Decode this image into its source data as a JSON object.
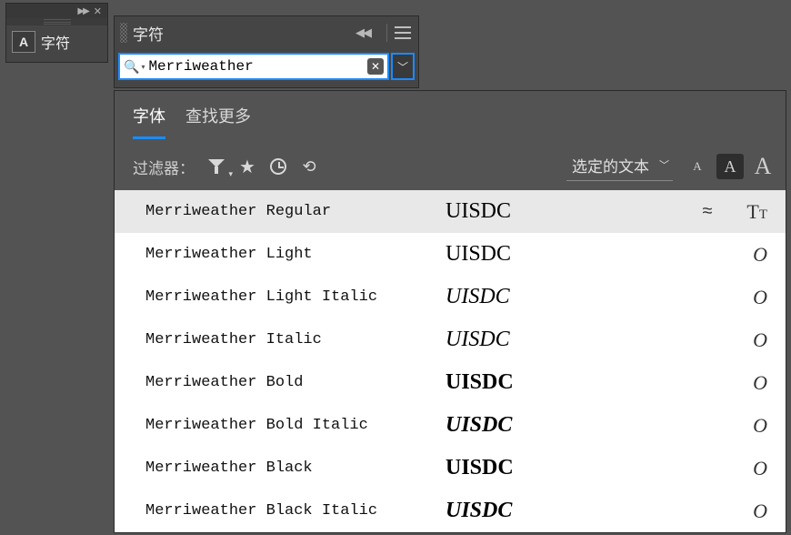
{
  "left_panel": {
    "label": "字符"
  },
  "char_panel": {
    "title": "字符",
    "search_value": "Merriweather"
  },
  "dropdown": {
    "tabs": [
      {
        "label": "字体",
        "active": true
      },
      {
        "label": "查找更多",
        "active": false
      }
    ],
    "filter_label": "过滤器：",
    "selected_text_label": "选定的文本",
    "preview_text": "UISDC",
    "fonts": [
      {
        "name": "Merriweather Regular",
        "weight": "fw400",
        "italic": false,
        "selected": true,
        "similar": "≈",
        "type": "TT"
      },
      {
        "name": "Merriweather Light",
        "weight": "fw300",
        "italic": false,
        "selected": false,
        "similar": "",
        "type": "O"
      },
      {
        "name": "Merriweather Light Italic",
        "weight": "fw300",
        "italic": true,
        "selected": false,
        "similar": "",
        "type": "O"
      },
      {
        "name": "Merriweather Italic",
        "weight": "fw400",
        "italic": true,
        "selected": false,
        "similar": "",
        "type": "O"
      },
      {
        "name": "Merriweather Bold",
        "weight": "fw700",
        "italic": false,
        "selected": false,
        "similar": "",
        "type": "O"
      },
      {
        "name": "Merriweather Bold Italic",
        "weight": "fw700",
        "italic": true,
        "selected": false,
        "similar": "",
        "type": "O"
      },
      {
        "name": "Merriweather Black",
        "weight": "fw900",
        "italic": false,
        "selected": false,
        "similar": "",
        "type": "O"
      },
      {
        "name": "Merriweather Black Italic",
        "weight": "fw900",
        "italic": true,
        "selected": false,
        "similar": "",
        "type": "O"
      }
    ]
  }
}
